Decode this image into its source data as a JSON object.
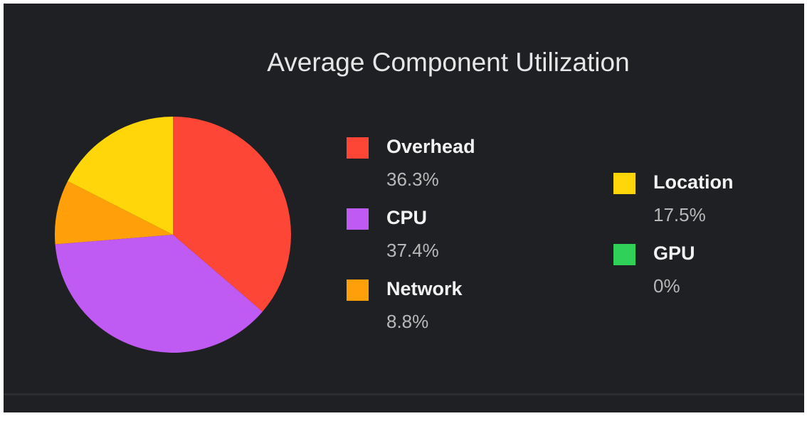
{
  "chart_data": {
    "type": "pie",
    "title": "Average Component Utilization",
    "categories": [
      "Overhead",
      "CPU",
      "Network",
      "Location",
      "GPU"
    ],
    "values": [
      36.3,
      37.4,
      8.8,
      17.5,
      0
    ],
    "value_labels": [
      "36.3%",
      "37.4%",
      "8.8%",
      "17.5%",
      "0%"
    ],
    "colors": [
      "#fe4637",
      "#bf5af2",
      "#ff9f0a",
      "#ffd60a",
      "#30d158"
    ]
  }
}
